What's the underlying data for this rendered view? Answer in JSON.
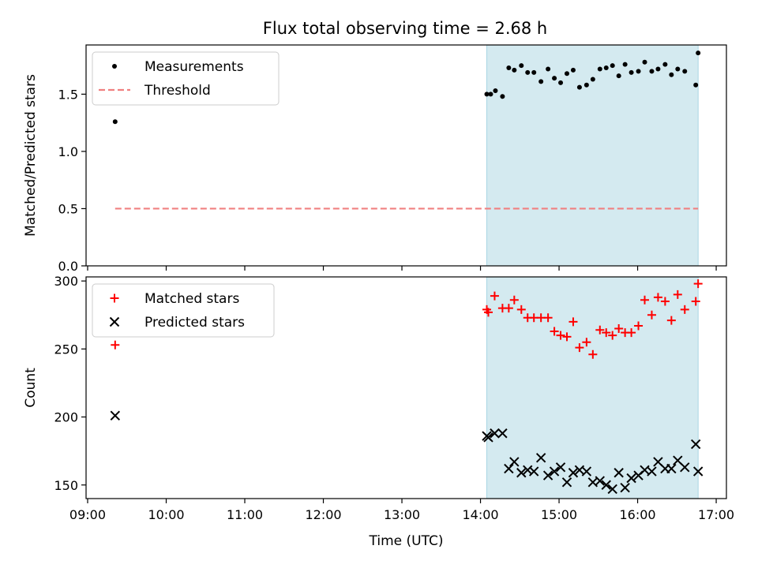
{
  "title": "Flux total observing time = 2.68 h",
  "chart_data": [
    {
      "type": "scatter",
      "ylabel": "Matched/Predicted stars",
      "ylim": [
        0,
        1.93
      ],
      "yticks": [
        0.0,
        0.5,
        1.0,
        1.5
      ],
      "ytick_labels": [
        "0.0",
        "0.5",
        "1.0",
        "1.5"
      ],
      "xlim": [
        8.98,
        17.13
      ],
      "shaded_x": [
        14.08,
        16.77
      ],
      "shade_color": "#d4eaf0",
      "legend_position": "upper-left",
      "series": [
        {
          "name": "Measurements",
          "marker": "dot",
          "color": "#000000",
          "x": [
            9.35,
            14.08,
            14.13,
            14.19,
            14.28,
            14.36,
            14.43,
            14.52,
            14.6,
            14.68,
            14.77,
            14.86,
            14.94,
            15.02,
            15.1,
            15.18,
            15.26,
            15.35,
            15.43,
            15.52,
            15.6,
            15.68,
            15.76,
            15.84,
            15.92,
            16.01,
            16.09,
            16.18,
            16.26,
            16.35,
            16.43,
            16.51,
            16.6,
            16.74,
            16.77
          ],
          "y": [
            1.26,
            1.5,
            1.5,
            1.53,
            1.48,
            1.73,
            1.71,
            1.75,
            1.69,
            1.69,
            1.61,
            1.72,
            1.64,
            1.6,
            1.68,
            1.71,
            1.56,
            1.58,
            1.63,
            1.72,
            1.73,
            1.75,
            1.66,
            1.76,
            1.69,
            1.7,
            1.78,
            1.7,
            1.72,
            1.76,
            1.67,
            1.72,
            1.7,
            1.58,
            1.86
          ]
        },
        {
          "name": "Threshold",
          "marker": "dashed-line",
          "color": "#f08080",
          "x": [
            9.35,
            16.77
          ],
          "y": [
            0.5,
            0.5
          ]
        }
      ]
    },
    {
      "type": "scatter",
      "ylabel": "Count",
      "xlabel": "Time (UTC)",
      "ylim": [
        140,
        303
      ],
      "yticks": [
        150,
        200,
        250,
        300
      ],
      "ytick_labels": [
        "150",
        "200",
        "250",
        "300"
      ],
      "xlim": [
        8.98,
        17.13
      ],
      "xticks": [
        9,
        10,
        11,
        12,
        13,
        14,
        15,
        16,
        17
      ],
      "xtick_labels": [
        "09:00",
        "10:00",
        "11:00",
        "12:00",
        "13:00",
        "14:00",
        "15:00",
        "16:00",
        "17:00"
      ],
      "shaded_x": [
        14.08,
        16.77
      ],
      "shade_color": "#d4eaf0",
      "legend_position": "upper-left",
      "series": [
        {
          "name": "Matched stars",
          "marker": "plus",
          "color": "#ff0000",
          "x": [
            9.35,
            14.08,
            14.1,
            14.18,
            14.28,
            14.36,
            14.43,
            14.52,
            14.6,
            14.68,
            14.77,
            14.86,
            14.94,
            15.02,
            15.1,
            15.18,
            15.26,
            15.35,
            15.43,
            15.52,
            15.6,
            15.68,
            15.76,
            15.84,
            15.92,
            16.01,
            16.09,
            16.18,
            16.26,
            16.35,
            16.43,
            16.51,
            16.6,
            16.74,
            16.77
          ],
          "y": [
            253,
            279,
            277,
            289,
            280,
            280,
            286,
            279,
            273,
            273,
            273,
            273,
            263,
            260,
            259,
            270,
            251,
            255,
            246,
            264,
            262,
            260,
            265,
            262,
            262,
            267,
            286,
            275,
            288,
            285,
            271,
            290,
            279,
            285,
            298
          ]
        },
        {
          "name": "Predicted stars",
          "marker": "x",
          "color": "#000000",
          "x": [
            9.35,
            14.08,
            14.1,
            14.18,
            14.28,
            14.36,
            14.43,
            14.52,
            14.6,
            14.68,
            14.77,
            14.86,
            14.94,
            15.02,
            15.1,
            15.18,
            15.26,
            15.35,
            15.43,
            15.52,
            15.6,
            15.68,
            15.76,
            15.84,
            15.92,
            16.01,
            16.09,
            16.18,
            16.26,
            16.35,
            16.43,
            16.51,
            16.6,
            16.74,
            16.77
          ],
          "y": [
            201,
            186,
            185,
            188,
            188,
            162,
            167,
            159,
            161,
            160,
            170,
            157,
            160,
            163,
            152,
            159,
            161,
            160,
            152,
            153,
            150,
            147,
            159,
            148,
            155,
            157,
            161,
            160,
            167,
            162,
            162,
            168,
            163,
            180,
            160
          ]
        }
      ]
    }
  ]
}
